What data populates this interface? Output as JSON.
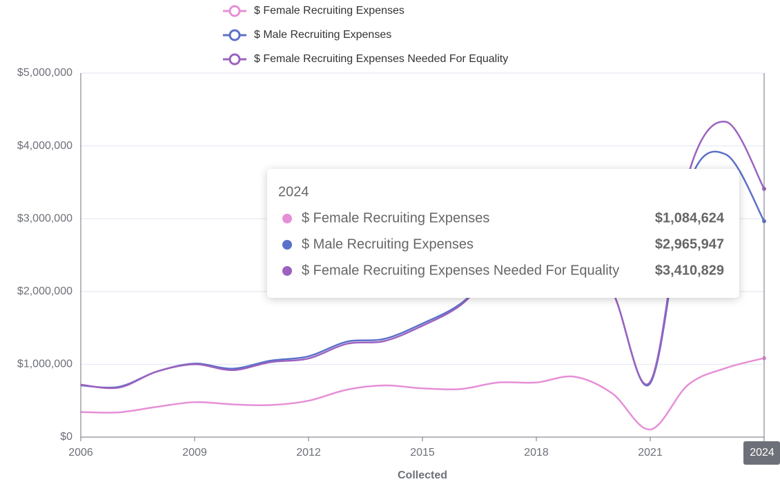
{
  "chart_data": {
    "type": "line",
    "x_label": "Collected",
    "x": [
      2006,
      2007,
      2008,
      2009,
      2010,
      2011,
      2012,
      2013,
      2014,
      2015,
      2016,
      2017,
      2018,
      2019,
      2020,
      2021,
      2022,
      2023,
      2024
    ],
    "xlim": [
      2006,
      2024
    ],
    "xticks": [
      2006,
      2009,
      2012,
      2015,
      2018,
      2021,
      2024
    ],
    "ylim": [
      0,
      5000000
    ],
    "yticks": [
      {
        "value": 0,
        "label": "$0"
      },
      {
        "value": 1000000,
        "label": "$1,000,000"
      },
      {
        "value": 2000000,
        "label": "$2,000,000"
      },
      {
        "value": 3000000,
        "label": "$3,000,000"
      },
      {
        "value": 4000000,
        "label": "$4,000,000"
      },
      {
        "value": 5000000,
        "label": "$5,000,000"
      }
    ],
    "grid": true,
    "legend": "top",
    "series": [
      {
        "name": "$ Female Recruiting Expenses",
        "color": "#e68fd6",
        "values": [
          345000,
          340000,
          415000,
          480000,
          450000,
          440000,
          500000,
          650000,
          710000,
          670000,
          660000,
          750000,
          750000,
          830000,
          600000,
          105000,
          720000,
          950000,
          1084624
        ]
      },
      {
        "name": "$ Male Recruiting Expenses",
        "color": "#5b70c9",
        "values": [
          710000,
          690000,
          900000,
          1010000,
          940000,
          1050000,
          1110000,
          1310000,
          1350000,
          1560000,
          1830000,
          2300000,
          2500000,
          2500000,
          2000000,
          740000,
          3450000,
          3880000,
          2965947
        ]
      },
      {
        "name": "$ Female Recruiting Expenses Needed For Equality",
        "color": "#9b62bf",
        "values": [
          720000,
          680000,
          900000,
          1000000,
          920000,
          1030000,
          1080000,
          1280000,
          1320000,
          1530000,
          1810000,
          2300000,
          2500000,
          2500000,
          2000000,
          760000,
          3600000,
          4330000,
          3410829
        ]
      }
    ],
    "tooltip": {
      "values": [
        "$1,084,624",
        "$2,965,947",
        "$3,410,829"
      ]
    }
  }
}
